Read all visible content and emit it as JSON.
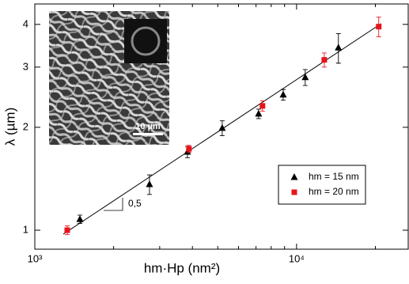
{
  "chart_data": {
    "type": "scatter",
    "xlabel": "hm·Hp (nm²)",
    "ylabel": "λ (µm)",
    "xscale": "log",
    "yscale": "log",
    "xlim": [
      1000,
      26700
    ],
    "ylim": [
      0.88,
      4.59
    ],
    "xticks": [
      {
        "value": 1000,
        "label": "10³"
      },
      {
        "value": 10000,
        "label": "10⁴"
      }
    ],
    "x_minor_ticks": [
      2000,
      3000,
      4000,
      5000,
      6000,
      7000,
      8000,
      9000,
      20000
    ],
    "yticks": [
      1,
      2,
      3,
      4
    ],
    "legend": "lower right",
    "series": [
      {
        "name": "hm = 15 nm",
        "color": "#000000",
        "marker": "triangle",
        "x": [
          1487,
          2742,
          3830,
          5200,
          7160,
          8890,
          10790,
          14450
        ],
        "values": [
          1.077,
          1.362,
          1.695,
          1.99,
          2.19,
          2.49,
          2.8,
          3.42
        ],
        "errors": [
          0.03,
          0.09,
          0.065,
          0.1,
          0.07,
          0.09,
          0.15,
          0.34
        ]
      },
      {
        "name": "hm = 20 nm",
        "color": "#e8141c",
        "marker": "square",
        "x": [
          1330,
          3880,
          7410,
          12760,
          20600
        ],
        "values": [
          1.0,
          1.73,
          2.31,
          3.15,
          3.94
        ],
        "errors": [
          0.03,
          0.04,
          0.08,
          0.15,
          0.26
        ]
      }
    ],
    "fit": {
      "x": [
        1285,
        21040
      ],
      "y": [
        0.974,
        4.02
      ]
    },
    "slope_label": "0,5",
    "inset_scale_label": "10 µm"
  }
}
